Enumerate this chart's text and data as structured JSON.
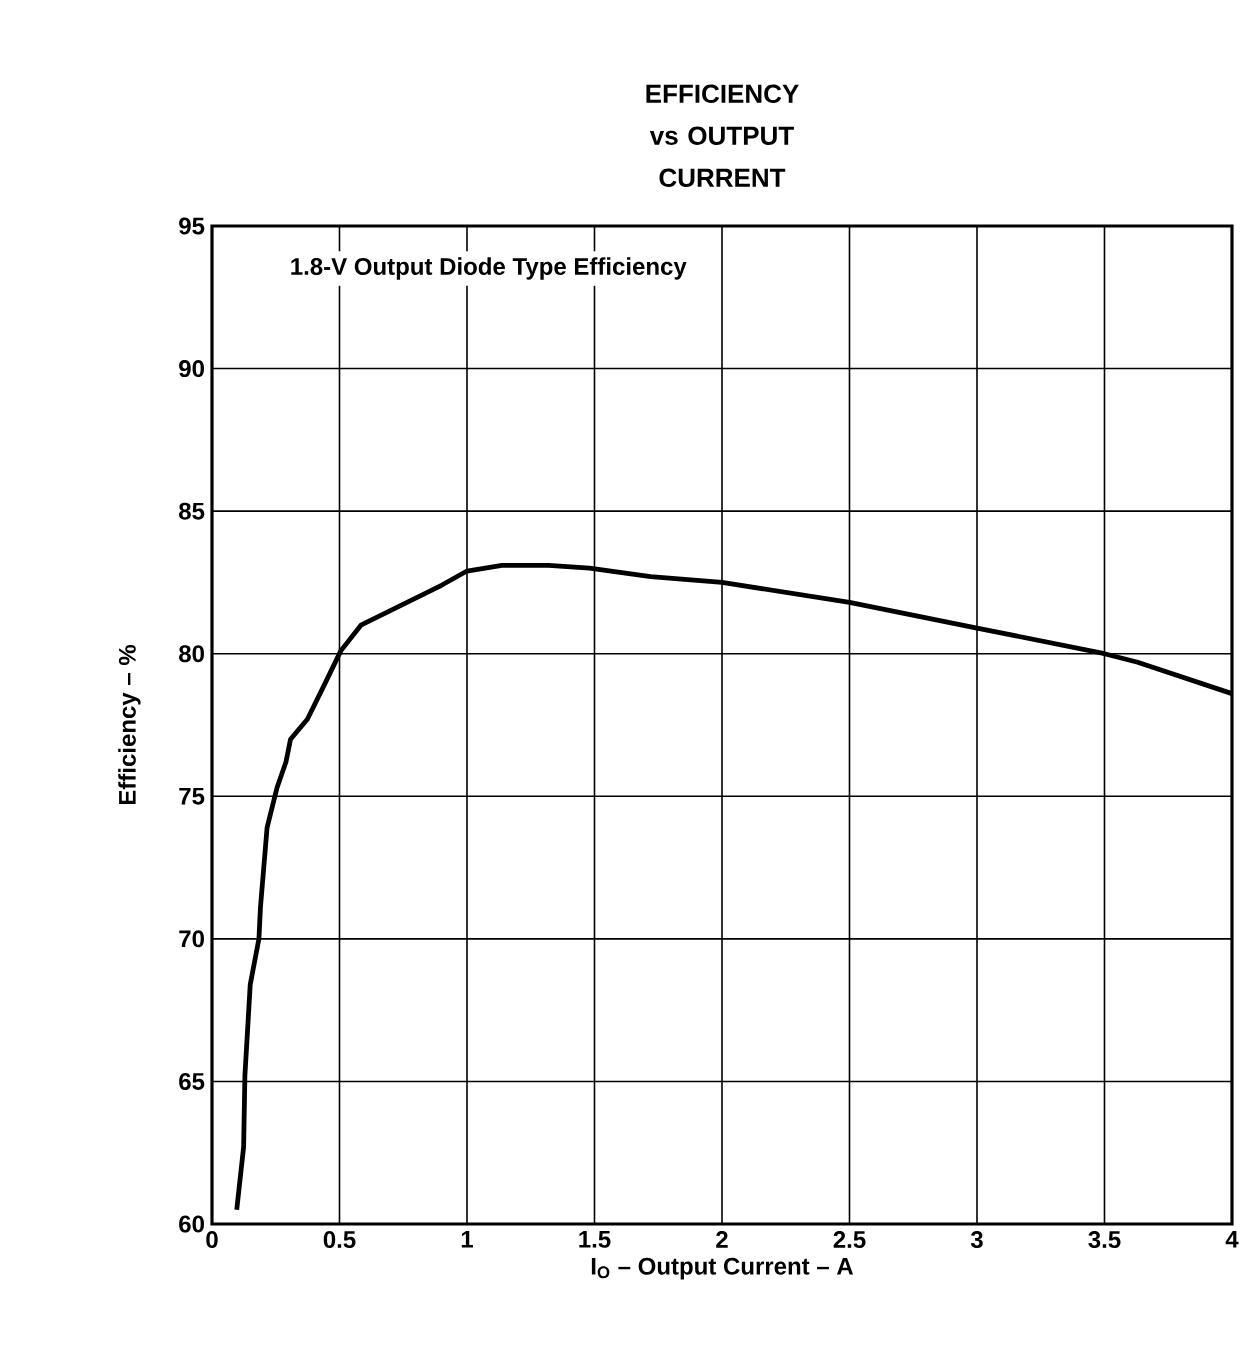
{
  "chart_data": {
    "type": "line",
    "title": "EFFICIENCY vs OUTPUT CURRENT",
    "xlabel": "I$_{O}$ – Output Current – A",
    "ylabel": "Efficiency – %",
    "annotations": [
      "1.8-V Output Diode Type Efficiency"
    ],
    "xlim": [
      0,
      4
    ],
    "ylim": [
      60,
      95
    ],
    "xticks": [
      0,
      0.5,
      1,
      1.5,
      2,
      2.5,
      3,
      3.5,
      4
    ],
    "yticks": [
      60,
      65,
      70,
      75,
      80,
      85,
      90,
      95
    ],
    "grid": true,
    "marker": "none",
    "line_style": "solid",
    "series": [
      {
        "color": "#000000",
        "x": [
          0.097,
          0.124,
          0.129,
          0.15,
          0.184,
          0.19,
          0.216,
          0.255,
          0.29,
          0.308,
          0.374,
          0.44,
          0.505,
          0.584,
          0.742,
          0.9,
          1.0,
          1.137,
          1.32,
          1.48,
          1.72,
          2.0,
          2.5,
          3.0,
          3.5,
          3.63,
          4.0
        ],
        "values": [
          60.5,
          62.7,
          65.2,
          68.4,
          70.0,
          71.1,
          73.9,
          75.3,
          76.2,
          77.0,
          77.7,
          78.9,
          80.1,
          81.0,
          81.7,
          82.4,
          82.9,
          83.1,
          83.1,
          83.0,
          82.7,
          82.5,
          81.8,
          80.9,
          80.0,
          79.7,
          78.6
        ]
      }
    ]
  }
}
